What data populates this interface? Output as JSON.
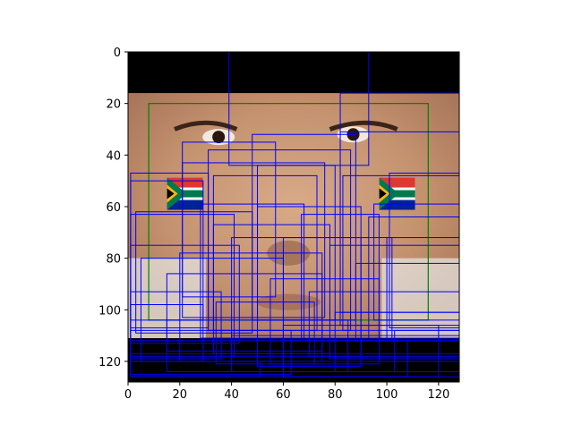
{
  "axes": {
    "x": {
      "range": [
        0,
        128
      ],
      "ticks": [
        "0",
        "20",
        "40",
        "60",
        "80",
        "100",
        "120"
      ],
      "tick_values": [
        0,
        20,
        40,
        60,
        80,
        100,
        120
      ]
    },
    "y": {
      "range": [
        0,
        128
      ],
      "ticks": [
        "0",
        "20",
        "40",
        "60",
        "80",
        "100",
        "120"
      ],
      "tick_values": [
        0,
        20,
        40,
        60,
        80,
        100,
        120
      ],
      "inverted": true
    }
  },
  "image": {
    "subject": "close-up face with South African flag face paint",
    "top_black_band_rows": [
      0,
      16
    ],
    "bottom_black_band_rows": [
      111,
      128
    ]
  },
  "colors": {
    "box_primary": "#0000ff",
    "box_ground_truth": "#008000",
    "skin": "#c99a78",
    "band": "#000000"
  },
  "chart_data": {
    "type": "scatter",
    "ground_truth_box": {
      "x": 8,
      "y": 20,
      "w": 108,
      "h": 84
    },
    "boxes": [
      [
        39,
        0,
        54,
        44
      ],
      [
        82,
        16,
        46,
        90
      ],
      [
        82,
        31,
        46,
        70
      ],
      [
        21,
        35,
        36,
        60
      ],
      [
        48,
        32,
        40,
        72
      ],
      [
        1,
        47,
        30,
        60
      ],
      [
        21,
        43,
        55,
        60
      ],
      [
        31,
        38,
        55,
        70
      ],
      [
        50,
        44,
        30,
        60
      ],
      [
        33,
        48,
        40,
        60
      ],
      [
        1,
        50,
        28,
        54
      ],
      [
        83,
        48,
        45,
        60
      ],
      [
        101,
        47,
        27,
        60
      ],
      [
        3,
        62,
        45,
        47
      ],
      [
        28,
        59,
        40,
        52
      ],
      [
        50,
        60,
        40,
        62
      ],
      [
        67,
        63,
        30,
        48
      ],
      [
        1,
        63,
        40,
        55
      ],
      [
        33,
        67,
        45,
        50
      ],
      [
        95,
        59,
        33,
        45
      ],
      [
        1,
        75,
        42,
        38
      ],
      [
        5,
        80,
        55,
        40
      ],
      [
        20,
        78,
        55,
        42
      ],
      [
        40,
        72,
        50,
        46
      ],
      [
        60,
        72,
        42,
        40
      ],
      [
        78,
        75,
        50,
        44
      ],
      [
        93,
        64,
        35,
        47
      ],
      [
        100,
        72,
        28,
        40
      ],
      [
        1,
        93,
        35,
        26
      ],
      [
        15,
        86,
        60,
        30
      ],
      [
        34,
        97,
        38,
        24
      ],
      [
        55,
        88,
        42,
        33
      ],
      [
        70,
        93,
        58,
        25
      ],
      [
        88,
        82,
        40,
        30
      ],
      [
        1,
        98,
        28,
        22
      ],
      [
        1,
        108,
        62,
        17
      ],
      [
        40,
        110,
        88,
        14
      ],
      [
        60,
        106,
        60,
        20
      ],
      [
        1,
        112,
        127,
        8
      ],
      [
        1,
        117,
        127,
        9
      ],
      [
        15,
        104,
        70,
        20
      ],
      [
        80,
        101,
        48,
        23
      ],
      [
        103,
        108,
        25,
        16
      ],
      [
        1,
        120,
        50,
        6
      ],
      [
        60,
        112,
        48,
        14
      ]
    ]
  }
}
